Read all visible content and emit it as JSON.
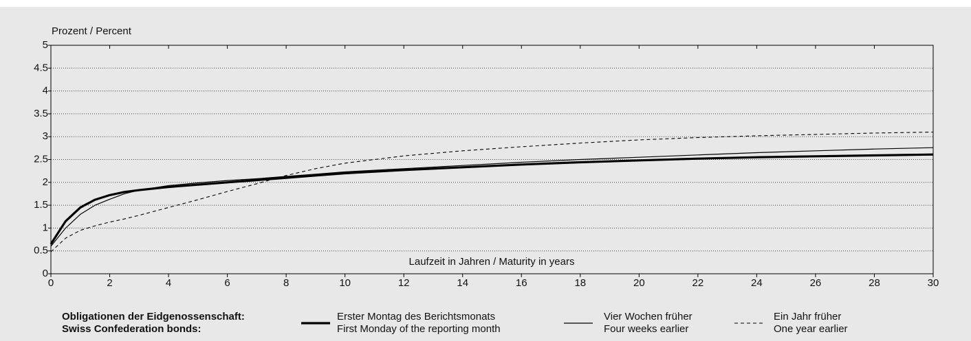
{
  "chart_data": {
    "type": "line",
    "ylabel": "Prozent / Percent",
    "xlabel": "Laufzeit in Jahren / Maturity in years",
    "legend_title": [
      "Obligationen der Eidgenossenschaft:",
      "Swiss Confederation bonds:"
    ],
    "x": [
      0,
      0.5,
      1,
      1.5,
      2,
      2.5,
      3,
      4,
      5,
      6,
      7,
      8,
      9,
      10,
      12,
      14,
      16,
      18,
      20,
      22,
      24,
      26,
      28,
      30
    ],
    "series": [
      {
        "name": [
          "Erster Montag des Berichtsmonats",
          "First Monday of the reporting month"
        ],
        "color": "#000000",
        "width": 3.2,
        "dash": "solid",
        "values": [
          0.65,
          1.15,
          1.45,
          1.62,
          1.72,
          1.79,
          1.83,
          1.9,
          1.95,
          2.0,
          2.05,
          2.1,
          2.15,
          2.2,
          2.27,
          2.33,
          2.39,
          2.44,
          2.48,
          2.52,
          2.55,
          2.57,
          2.59,
          2.61
        ]
      },
      {
        "name": [
          "Vier Wochen früher",
          "Four weeks earlier"
        ],
        "color": "#000000",
        "width": 1.2,
        "dash": "solid",
        "values": [
          0.6,
          1.0,
          1.3,
          1.5,
          1.63,
          1.75,
          1.83,
          1.93,
          1.99,
          2.04,
          2.08,
          2.13,
          2.18,
          2.23,
          2.3,
          2.37,
          2.44,
          2.5,
          2.55,
          2.6,
          2.65,
          2.69,
          2.73,
          2.76
        ]
      },
      {
        "name": [
          "Ein Jahr früher",
          "One year earlier"
        ],
        "color": "#000000",
        "width": 1.1,
        "dash": "dashed",
        "values": [
          0.48,
          0.78,
          0.95,
          1.05,
          1.13,
          1.2,
          1.28,
          1.45,
          1.62,
          1.8,
          1.97,
          2.15,
          2.3,
          2.42,
          2.58,
          2.69,
          2.78,
          2.86,
          2.93,
          2.98,
          3.02,
          3.05,
          3.08,
          3.1
        ]
      }
    ],
    "xlim": [
      0,
      30
    ],
    "xticks": [
      0,
      2,
      4,
      6,
      8,
      10,
      12,
      14,
      16,
      18,
      20,
      22,
      24,
      26,
      28,
      30
    ],
    "ylim": [
      0,
      5
    ],
    "yticks": [
      0,
      0.5,
      1,
      1.5,
      2,
      2.5,
      3,
      3.5,
      4,
      4.5,
      5
    ],
    "grid": true
  }
}
